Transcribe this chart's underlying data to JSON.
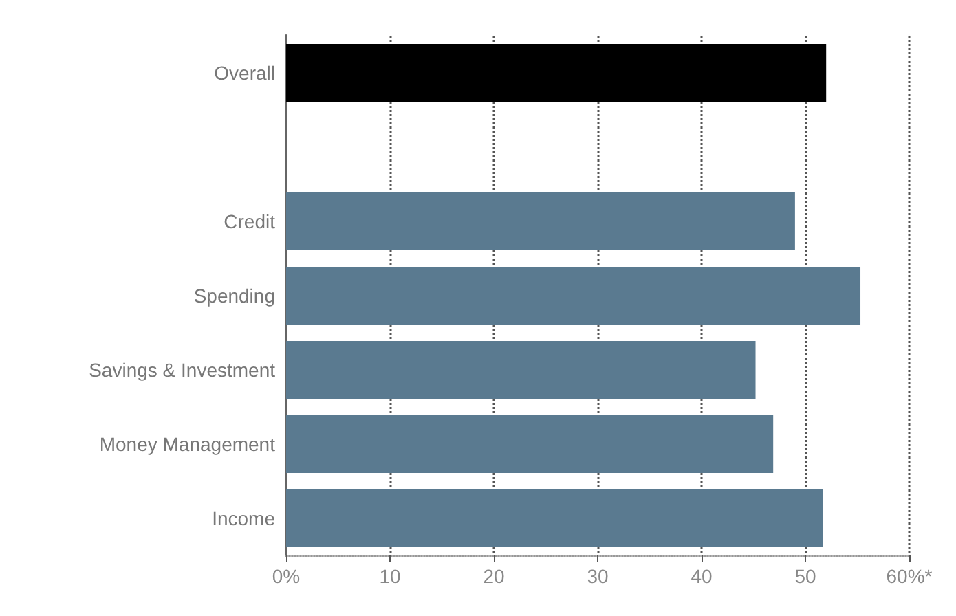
{
  "chart_data": {
    "type": "bar",
    "orientation": "horizontal",
    "categories": [
      "Overall",
      null,
      "Credit",
      "Spending",
      "Savings & Investment",
      "Money Management",
      "Income"
    ],
    "values": [
      52,
      null,
      49,
      55.3,
      45.2,
      46.9,
      51.7
    ],
    "colors": [
      "#000000",
      "#5a7a90",
      "#5a7a90",
      "#5a7a90",
      "#5a7a90",
      "#5a7a90",
      "#5a7a90"
    ],
    "xlim": [
      0,
      60
    ],
    "xticks": [
      {
        "value": 0,
        "label": "0%"
      },
      10,
      20,
      30,
      40,
      50,
      {
        "value": 60,
        "label": "60%*"
      }
    ],
    "grid": "x",
    "line_style": "dotted"
  }
}
